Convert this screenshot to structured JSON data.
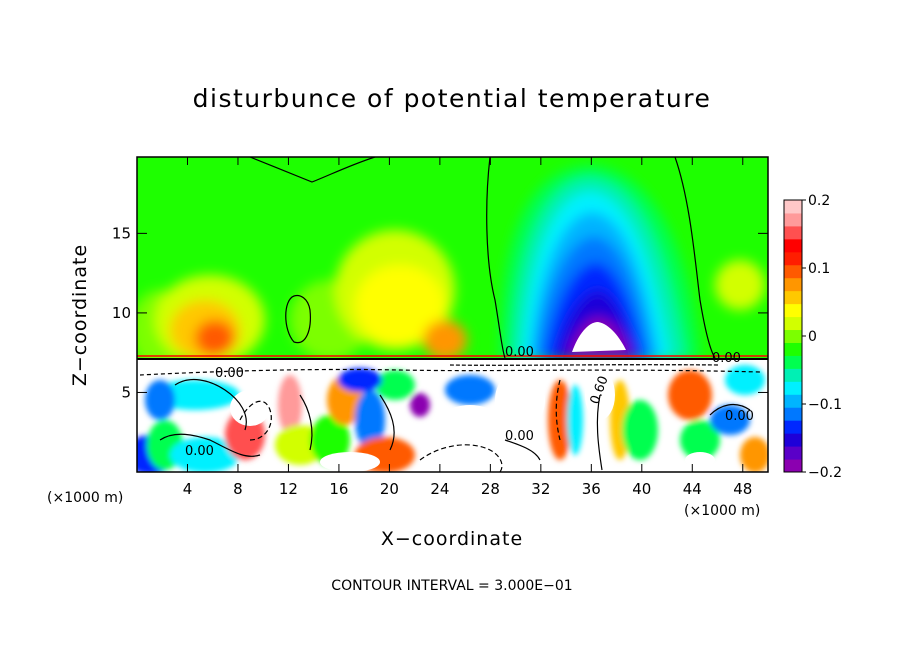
{
  "chart_data": {
    "type": "heatmap",
    "title": "disturbunce of potential temperature",
    "xlabel": "X−coordinate",
    "ylabel": "Z−coordinate",
    "x_unit_label": "(×1000 m)",
    "x_ticks": [
      4,
      8,
      12,
      16,
      20,
      24,
      28,
      32,
      36,
      40,
      44,
      48
    ],
    "y_ticks": [
      5,
      10,
      15
    ],
    "xlim": [
      0,
      50
    ],
    "ylim": [
      0,
      19.8
    ],
    "colorbar": {
      "min": -0.2,
      "max": 0.2,
      "tick_labels": [
        "0.2",
        "0.1",
        "0",
        "−0.1",
        "−0.2"
      ],
      "tick_values": [
        0.2,
        0.1,
        0,
        -0.1,
        -0.2
      ],
      "colors": [
        "#8b00b0",
        "#5a00c8",
        "#1e00d8",
        "#0028ff",
        "#0078ff",
        "#00b4ff",
        "#00f0ff",
        "#00f0b4",
        "#00ff50",
        "#1eff00",
        "#7cff00",
        "#d2ff00",
        "#ffff00",
        "#ffc800",
        "#ff9600",
        "#ff5a00",
        "#ff1e00",
        "#ff0000",
        "#ff5050",
        "#ff9a9a",
        "#ffc8c8"
      ]
    },
    "contour_labels": [
      "0.00",
      "0.00",
      "0.00",
      "0.00",
      "0.00",
      "0.00",
      "0.60"
    ],
    "contour_interval": "CONTOUR INTERVAL = 3.000E−01"
  }
}
